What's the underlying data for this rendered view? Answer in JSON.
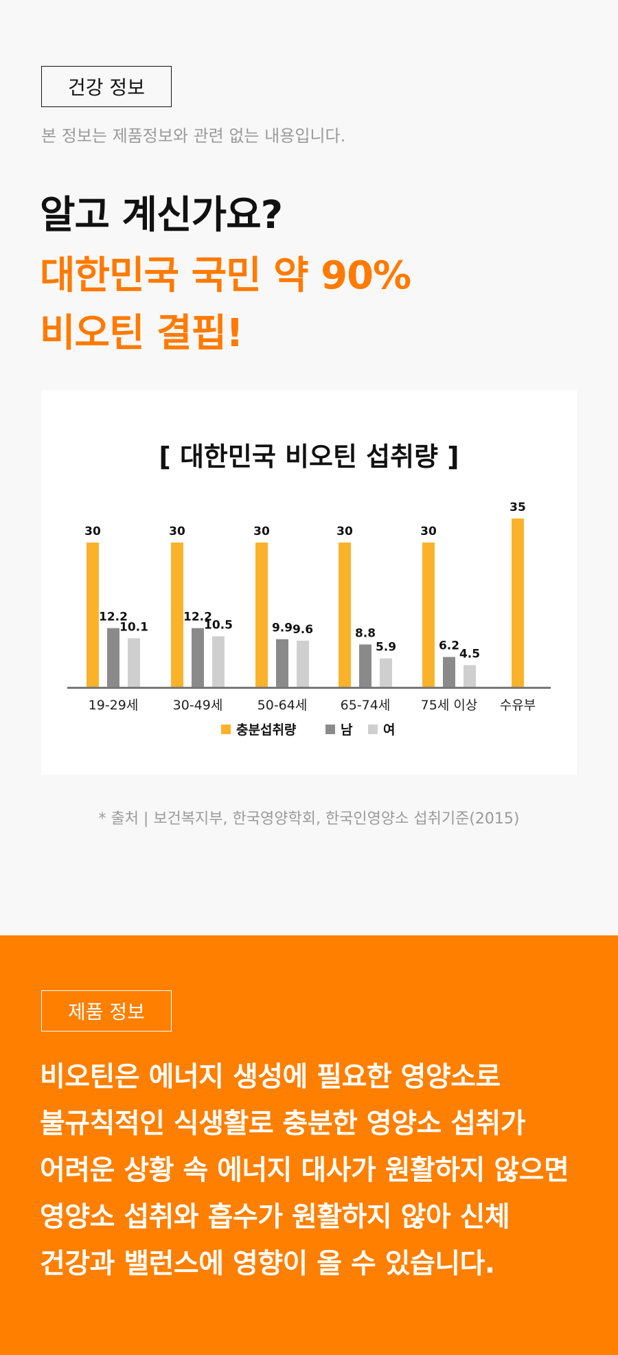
{
  "health_info": {
    "tag": "건강 정보",
    "disclaimer": "본 정보는 제품정보와 관련 없는 내용입니다.",
    "headline_1": "알고 계신가요?",
    "headline_2": "대한민국 국민 약 90%",
    "headline_3": "비오틴 결핍!",
    "source": "* 출처 | 보건복지부, 한국영양학회, 한국인영양소 섭취기준(2015)"
  },
  "colors": {
    "accent": "#ff7f00",
    "sufficient": "#fbb22b",
    "male": "#8a8a8a",
    "female": "#cfcfcf"
  },
  "chart_data": {
    "type": "bar",
    "title": "[ 대한민국 비오틴 섭취량 ]",
    "categories": [
      "19-29세",
      "30-49세",
      "50-64세",
      "65-74세",
      "75세 이상",
      "수유부"
    ],
    "series": [
      {
        "name": "충분섭취량",
        "values": [
          30,
          30,
          30,
          30,
          30,
          35
        ]
      },
      {
        "name": "남",
        "values": [
          12.2,
          12.2,
          9.9,
          8.8,
          6.2,
          null
        ]
      },
      {
        "name": "여",
        "values": [
          10.1,
          10.5,
          9.6,
          5.9,
          4.5,
          null
        ]
      }
    ],
    "ylim": [
      0,
      35
    ],
    "grid": false,
    "legend_position": "bottom"
  },
  "product_info": {
    "tag": "제품 정보",
    "lines": [
      "비오틴은 에너지 생성에 필요한 영양소로",
      "불규칙적인 식생활로 충분한 영양소 섭취가",
      "어려운 상황 속 에너지 대사가 원활하지 않으면",
      "영양소 섭취와 흡수가 원활하지 않아 신체",
      "건강과 밸런스에 영향이 올 수 있습니다."
    ]
  }
}
